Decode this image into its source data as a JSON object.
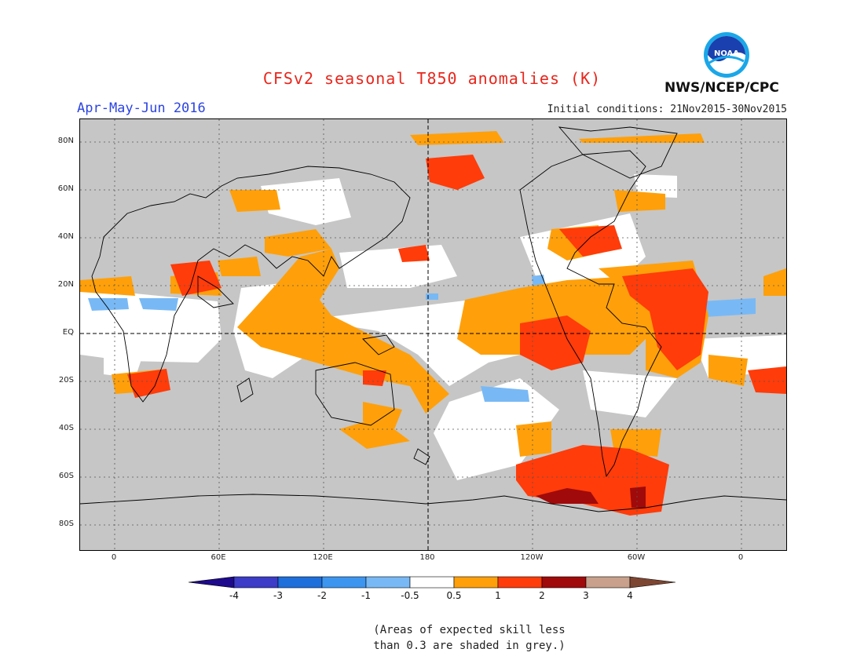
{
  "title": "CFSv2 seasonal T850 anomalies (K)",
  "season": "Apr-May-Jun 2016",
  "initial_conditions": "Initial conditions: 21Nov2015-30Nov2015",
  "agency": "NWS/NCEP/CPC",
  "logo_text": "NOAA",
  "lat_labels": [
    "80N",
    "60N",
    "40N",
    "20N",
    "EQ",
    "20S",
    "40S",
    "60S",
    "80S"
  ],
  "lon_labels": [
    "0",
    "60E",
    "120E",
    "180",
    "120W",
    "60W",
    "0"
  ],
  "colorbar": {
    "labels": [
      "-4",
      "-3",
      "-2",
      "-1",
      "-0.5",
      "0.5",
      "1",
      "2",
      "3",
      "4"
    ],
    "bins": [
      {
        "range": "< -4",
        "color": "#1e0a8c"
      },
      {
        "range": "-4 to -3",
        "color": "#3c3cc8"
      },
      {
        "range": "-3 to -2",
        "color": "#1e6edc"
      },
      {
        "range": "-2 to -1",
        "color": "#3c96f0"
      },
      {
        "range": "-1 to -0.5",
        "color": "#78b9f5"
      },
      {
        "range": "-0.5 to 0.5",
        "color": "#ffffff"
      },
      {
        "range": "0.5 to 1",
        "color": "#ffa00a"
      },
      {
        "range": "1 to 2",
        "color": "#ff3c0a"
      },
      {
        "range": "2 to 3",
        "color": "#a00a0a"
      },
      {
        "range": "3 to 4",
        "color": "#c8a08c"
      },
      {
        "range": "> 4",
        "color": "#7d4632"
      }
    ]
  },
  "skill_mask_color": "#c6c6c6",
  "note_line1": "(Areas of expected skill less",
  "note_line2": "than 0.3 are shaded in grey.)"
}
